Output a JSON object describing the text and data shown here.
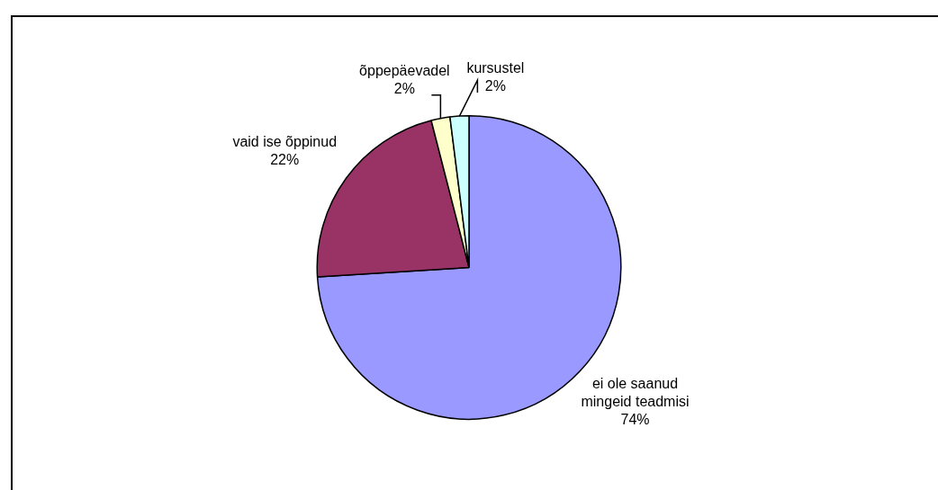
{
  "chart_data": {
    "type": "pie",
    "categories": [
      "ei ole saanud mingeid teadmisi",
      "vaid ise õppinud",
      "õppepäevadel",
      "kursustel"
    ],
    "values": [
      74,
      22,
      2,
      2
    ],
    "value_labels": [
      "74%",
      "22%",
      "2%",
      "2%"
    ],
    "colors": [
      "#9999ff",
      "#993366",
      "#ffffcc",
      "#ccffff"
    ],
    "legend": false
  }
}
